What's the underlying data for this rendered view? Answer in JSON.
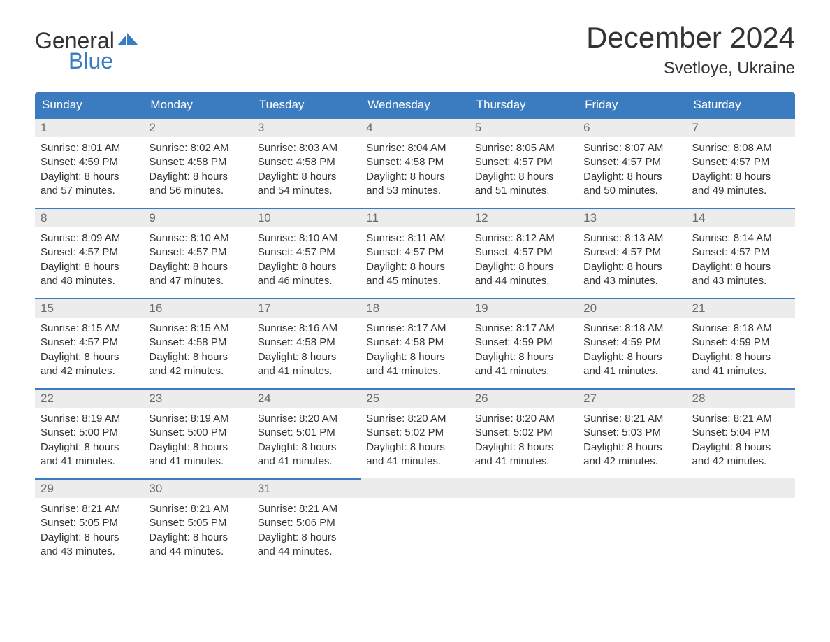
{
  "logo": {
    "text_general": "General",
    "text_blue": "Blue",
    "flag_color": "#3b7bbf"
  },
  "header": {
    "month_title": "December 2024",
    "location": "Svetloye, Ukraine"
  },
  "colors": {
    "header_bg": "#3b7bbf",
    "daynum_bg": "#ececec",
    "border_top": "#3b7bbf",
    "text_primary": "#333333",
    "text_muted": "#6a6a6a"
  },
  "weekdays": [
    "Sunday",
    "Monday",
    "Tuesday",
    "Wednesday",
    "Thursday",
    "Friday",
    "Saturday"
  ],
  "weeks": [
    {
      "days": [
        {
          "num": "1",
          "sunrise": "Sunrise: 8:01 AM",
          "sunset": "Sunset: 4:59 PM",
          "daylight1": "Daylight: 8 hours",
          "daylight2": "and 57 minutes."
        },
        {
          "num": "2",
          "sunrise": "Sunrise: 8:02 AM",
          "sunset": "Sunset: 4:58 PM",
          "daylight1": "Daylight: 8 hours",
          "daylight2": "and 56 minutes."
        },
        {
          "num": "3",
          "sunrise": "Sunrise: 8:03 AM",
          "sunset": "Sunset: 4:58 PM",
          "daylight1": "Daylight: 8 hours",
          "daylight2": "and 54 minutes."
        },
        {
          "num": "4",
          "sunrise": "Sunrise: 8:04 AM",
          "sunset": "Sunset: 4:58 PM",
          "daylight1": "Daylight: 8 hours",
          "daylight2": "and 53 minutes."
        },
        {
          "num": "5",
          "sunrise": "Sunrise: 8:05 AM",
          "sunset": "Sunset: 4:57 PM",
          "daylight1": "Daylight: 8 hours",
          "daylight2": "and 51 minutes."
        },
        {
          "num": "6",
          "sunrise": "Sunrise: 8:07 AM",
          "sunset": "Sunset: 4:57 PM",
          "daylight1": "Daylight: 8 hours",
          "daylight2": "and 50 minutes."
        },
        {
          "num": "7",
          "sunrise": "Sunrise: 8:08 AM",
          "sunset": "Sunset: 4:57 PM",
          "daylight1": "Daylight: 8 hours",
          "daylight2": "and 49 minutes."
        }
      ]
    },
    {
      "days": [
        {
          "num": "8",
          "sunrise": "Sunrise: 8:09 AM",
          "sunset": "Sunset: 4:57 PM",
          "daylight1": "Daylight: 8 hours",
          "daylight2": "and 48 minutes."
        },
        {
          "num": "9",
          "sunrise": "Sunrise: 8:10 AM",
          "sunset": "Sunset: 4:57 PM",
          "daylight1": "Daylight: 8 hours",
          "daylight2": "and 47 minutes."
        },
        {
          "num": "10",
          "sunrise": "Sunrise: 8:10 AM",
          "sunset": "Sunset: 4:57 PM",
          "daylight1": "Daylight: 8 hours",
          "daylight2": "and 46 minutes."
        },
        {
          "num": "11",
          "sunrise": "Sunrise: 8:11 AM",
          "sunset": "Sunset: 4:57 PM",
          "daylight1": "Daylight: 8 hours",
          "daylight2": "and 45 minutes."
        },
        {
          "num": "12",
          "sunrise": "Sunrise: 8:12 AM",
          "sunset": "Sunset: 4:57 PM",
          "daylight1": "Daylight: 8 hours",
          "daylight2": "and 44 minutes."
        },
        {
          "num": "13",
          "sunrise": "Sunrise: 8:13 AM",
          "sunset": "Sunset: 4:57 PM",
          "daylight1": "Daylight: 8 hours",
          "daylight2": "and 43 minutes."
        },
        {
          "num": "14",
          "sunrise": "Sunrise: 8:14 AM",
          "sunset": "Sunset: 4:57 PM",
          "daylight1": "Daylight: 8 hours",
          "daylight2": "and 43 minutes."
        }
      ]
    },
    {
      "days": [
        {
          "num": "15",
          "sunrise": "Sunrise: 8:15 AM",
          "sunset": "Sunset: 4:57 PM",
          "daylight1": "Daylight: 8 hours",
          "daylight2": "and 42 minutes."
        },
        {
          "num": "16",
          "sunrise": "Sunrise: 8:15 AM",
          "sunset": "Sunset: 4:58 PM",
          "daylight1": "Daylight: 8 hours",
          "daylight2": "and 42 minutes."
        },
        {
          "num": "17",
          "sunrise": "Sunrise: 8:16 AM",
          "sunset": "Sunset: 4:58 PM",
          "daylight1": "Daylight: 8 hours",
          "daylight2": "and 41 minutes."
        },
        {
          "num": "18",
          "sunrise": "Sunrise: 8:17 AM",
          "sunset": "Sunset: 4:58 PM",
          "daylight1": "Daylight: 8 hours",
          "daylight2": "and 41 minutes."
        },
        {
          "num": "19",
          "sunrise": "Sunrise: 8:17 AM",
          "sunset": "Sunset: 4:59 PM",
          "daylight1": "Daylight: 8 hours",
          "daylight2": "and 41 minutes."
        },
        {
          "num": "20",
          "sunrise": "Sunrise: 8:18 AM",
          "sunset": "Sunset: 4:59 PM",
          "daylight1": "Daylight: 8 hours",
          "daylight2": "and 41 minutes."
        },
        {
          "num": "21",
          "sunrise": "Sunrise: 8:18 AM",
          "sunset": "Sunset: 4:59 PM",
          "daylight1": "Daylight: 8 hours",
          "daylight2": "and 41 minutes."
        }
      ]
    },
    {
      "days": [
        {
          "num": "22",
          "sunrise": "Sunrise: 8:19 AM",
          "sunset": "Sunset: 5:00 PM",
          "daylight1": "Daylight: 8 hours",
          "daylight2": "and 41 minutes."
        },
        {
          "num": "23",
          "sunrise": "Sunrise: 8:19 AM",
          "sunset": "Sunset: 5:00 PM",
          "daylight1": "Daylight: 8 hours",
          "daylight2": "and 41 minutes."
        },
        {
          "num": "24",
          "sunrise": "Sunrise: 8:20 AM",
          "sunset": "Sunset: 5:01 PM",
          "daylight1": "Daylight: 8 hours",
          "daylight2": "and 41 minutes."
        },
        {
          "num": "25",
          "sunrise": "Sunrise: 8:20 AM",
          "sunset": "Sunset: 5:02 PM",
          "daylight1": "Daylight: 8 hours",
          "daylight2": "and 41 minutes."
        },
        {
          "num": "26",
          "sunrise": "Sunrise: 8:20 AM",
          "sunset": "Sunset: 5:02 PM",
          "daylight1": "Daylight: 8 hours",
          "daylight2": "and 41 minutes."
        },
        {
          "num": "27",
          "sunrise": "Sunrise: 8:21 AM",
          "sunset": "Sunset: 5:03 PM",
          "daylight1": "Daylight: 8 hours",
          "daylight2": "and 42 minutes."
        },
        {
          "num": "28",
          "sunrise": "Sunrise: 8:21 AM",
          "sunset": "Sunset: 5:04 PM",
          "daylight1": "Daylight: 8 hours",
          "daylight2": "and 42 minutes."
        }
      ]
    },
    {
      "days": [
        {
          "num": "29",
          "sunrise": "Sunrise: 8:21 AM",
          "sunset": "Sunset: 5:05 PM",
          "daylight1": "Daylight: 8 hours",
          "daylight2": "and 43 minutes."
        },
        {
          "num": "30",
          "sunrise": "Sunrise: 8:21 AM",
          "sunset": "Sunset: 5:05 PM",
          "daylight1": "Daylight: 8 hours",
          "daylight2": "and 44 minutes."
        },
        {
          "num": "31",
          "sunrise": "Sunrise: 8:21 AM",
          "sunset": "Sunset: 5:06 PM",
          "daylight1": "Daylight: 8 hours",
          "daylight2": "and 44 minutes."
        },
        {
          "empty": true
        },
        {
          "empty": true
        },
        {
          "empty": true
        },
        {
          "empty": true
        }
      ]
    }
  ]
}
